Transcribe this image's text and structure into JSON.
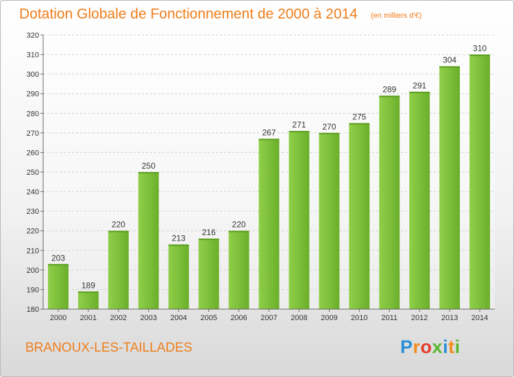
{
  "title": "Dotation Globale de Fonctionnement de 2000 à 2014",
  "unit_label": "(en milliers d'€)",
  "commune": "BRANOUX-LES-TAILLADES",
  "logo": {
    "letters": [
      "P",
      "r",
      "o",
      "x",
      "i",
      "t",
      "i"
    ],
    "colors": [
      "#2b8fd6",
      "#f28c1c",
      "#e53a2c",
      "#5bb731",
      "#2b8fd6",
      "#f28c1c",
      "#5bb731"
    ]
  },
  "chart_data": {
    "type": "bar",
    "categories": [
      "2000",
      "2001",
      "2002",
      "2003",
      "2004",
      "2005",
      "2006",
      "2007",
      "2008",
      "2009",
      "2010",
      "2011",
      "2012",
      "2013",
      "2014"
    ],
    "values": [
      203,
      189,
      220,
      250,
      213,
      216,
      220,
      267,
      271,
      270,
      275,
      289,
      291,
      304,
      310
    ],
    "ylim": [
      180,
      320
    ],
    "yticks": [
      180,
      190,
      200,
      210,
      220,
      230,
      240,
      250,
      260,
      270,
      280,
      290,
      300,
      310,
      320
    ],
    "grid": true,
    "bar_color": "#7ec03a",
    "bar_color_dark": "#5c9e20"
  }
}
